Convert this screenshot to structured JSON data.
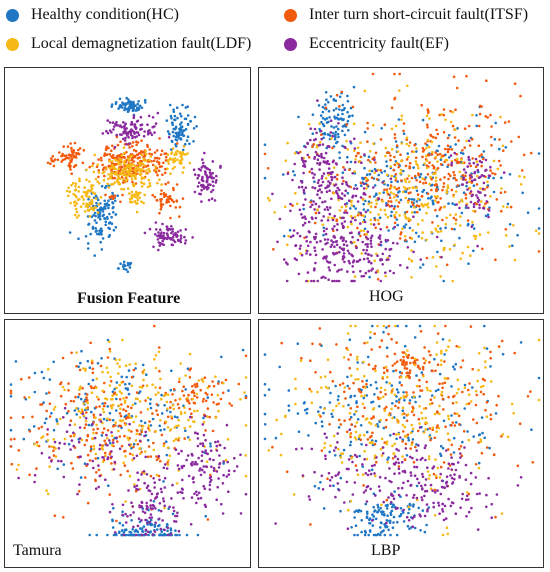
{
  "colors": {
    "HC": "#1f77c4",
    "ITSF": "#f25a0e",
    "LDF": "#f7b916",
    "EF": "#8a2a9e"
  },
  "legend": [
    {
      "key": "HC",
      "label": "Healthy condition(HC)"
    },
    {
      "key": "ITSF",
      "label": "Inter turn short-circuit fault(ITSF)"
    },
    {
      "key": "LDF",
      "label": "Local demagnetization fault(LDF)"
    },
    {
      "key": "EF",
      "label": "Eccentricity fault(EF)"
    }
  ],
  "chart_data": [
    {
      "type": "scatter",
      "title": "Fusion Feature",
      "series": [
        {
          "key": "HC",
          "name": "Healthy condition(HC)"
        },
        {
          "key": "ITSF",
          "name": "Inter turn short-circuit fault(ITSF)"
        },
        {
          "key": "LDF",
          "name": "Local demagnetization fault(LDF)"
        },
        {
          "key": "EF",
          "name": "Eccentricity fault(EF)"
        }
      ]
    },
    {
      "type": "scatter",
      "title": "HOG",
      "series": [
        {
          "key": "HC",
          "name": "Healthy condition(HC)"
        },
        {
          "key": "ITSF",
          "name": "Inter turn short-circuit fault(ITSF)"
        },
        {
          "key": "LDF",
          "name": "Local demagnetization fault(LDF)"
        },
        {
          "key": "EF",
          "name": "Eccentricity fault(EF)"
        }
      ]
    },
    {
      "type": "scatter",
      "title": "Tamura",
      "series": [
        {
          "key": "HC",
          "name": "Healthy condition(HC)"
        },
        {
          "key": "ITSF",
          "name": "Inter turn short-circuit fault(ITSF)"
        },
        {
          "key": "LDF",
          "name": "Local demagnetization fault(LDF)"
        },
        {
          "key": "EF",
          "name": "Eccentricity fault(EF)"
        }
      ]
    },
    {
      "type": "scatter",
      "title": "LBP",
      "series": [
        {
          "key": "HC",
          "name": "Healthy condition(HC)"
        },
        {
          "key": "ITSF",
          "name": "Inter turn short-circuit fault(ITSF)"
        },
        {
          "key": "LDF",
          "name": "Local demagnetization fault(LDF)"
        },
        {
          "key": "EF",
          "name": "Eccentricity fault(EF)"
        }
      ]
    }
  ]
}
